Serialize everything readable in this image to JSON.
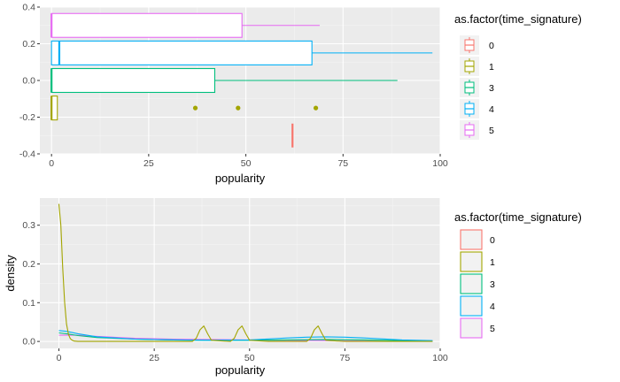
{
  "chart_data": [
    {
      "type": "boxplot",
      "xlabel": "popularity",
      "ylabel": "",
      "xlim": [
        -3,
        100
      ],
      "ylim": [
        -0.4,
        0.4
      ],
      "x_ticks": [
        0,
        25,
        50,
        75,
        100
      ],
      "y_ticks": [
        -0.4,
        -0.2,
        0.0,
        0.2,
        0.4
      ],
      "y_tick_labels": [
        "-0.4",
        "-0.2",
        "0.0",
        "0.2",
        "0.4"
      ],
      "grid": true,
      "legend": {
        "title": "as.factor(time_signature)",
        "placement": "right"
      },
      "series": [
        {
          "name": "0",
          "color": "#F8766D",
          "y_center": -0.3,
          "min": 62,
          "q1": 62,
          "median": 62,
          "q3": 62,
          "max": 62,
          "outliers": []
        },
        {
          "name": "1",
          "color": "#A3A500",
          "y_center": -0.15,
          "min": 0,
          "q1": 0,
          "median": 0,
          "q3": 1.5,
          "max": 1.5,
          "outliers": [
            37,
            48,
            68
          ]
        },
        {
          "name": "3",
          "color": "#00BF7D",
          "y_center": 0.0,
          "min": 0,
          "q1": 0,
          "median": 0,
          "q3": 42,
          "max": 89,
          "outliers": []
        },
        {
          "name": "4",
          "color": "#00B0F6",
          "y_center": 0.15,
          "min": 0,
          "q1": 0,
          "median": 2,
          "q3": 67,
          "max": 98,
          "outliers": []
        },
        {
          "name": "5",
          "color": "#E76BF3",
          "y_center": 0.3,
          "min": 0,
          "q1": 0,
          "median": 0,
          "q3": 49,
          "max": 69,
          "outliers": []
        }
      ]
    },
    {
      "type": "line",
      "xlabel": "popularity",
      "ylabel": "density",
      "xlim": [
        -5,
        100
      ],
      "ylim": [
        -0.018,
        0.37
      ],
      "x_ticks": [
        0,
        25,
        50,
        75,
        100
      ],
      "y_ticks": [
        0.0,
        0.1,
        0.2,
        0.3
      ],
      "y_tick_labels": [
        "0.0",
        "0.1",
        "0.2",
        "0.3"
      ],
      "grid": true,
      "legend": {
        "title": "as.factor(time_signature)",
        "placement": "right"
      },
      "series": [
        {
          "name": "0",
          "color": "#F8766D",
          "x": [],
          "y": []
        },
        {
          "name": "1",
          "color": "#A3A500",
          "x": [
            0,
            0.5,
            1,
            1.5,
            2,
            2.5,
            3,
            3.5,
            4,
            5,
            10,
            20,
            30,
            35,
            36,
            37,
            38,
            39,
            40,
            45,
            46,
            47,
            48,
            49,
            50,
            55,
            65,
            66,
            67,
            68,
            69,
            70,
            75,
            98
          ],
          "y": [
            0.355,
            0.3,
            0.19,
            0.1,
            0.045,
            0.018,
            0.007,
            0.003,
            0.001,
            0,
            0,
            0,
            0,
            0,
            0.008,
            0.03,
            0.04,
            0.02,
            0.003,
            0,
            0.008,
            0.03,
            0.04,
            0.02,
            0.003,
            0,
            0,
            0.008,
            0.03,
            0.04,
            0.02,
            0.003,
            0,
            0
          ]
        },
        {
          "name": "3",
          "color": "#00BF7D",
          "x": [
            0,
            2,
            5,
            10,
            20,
            30,
            40,
            50,
            60,
            70,
            80,
            90,
            98
          ],
          "y": [
            0.022,
            0.02,
            0.015,
            0.01,
            0.006,
            0.004,
            0.003,
            0.003,
            0.004,
            0.005,
            0.004,
            0.002,
            0.001
          ]
        },
        {
          "name": "4",
          "color": "#00B0F6",
          "x": [
            0,
            2,
            5,
            10,
            20,
            30,
            40,
            50,
            60,
            65,
            70,
            75,
            80,
            90,
            98
          ],
          "y": [
            0.028,
            0.026,
            0.02,
            0.012,
            0.006,
            0.004,
            0.003,
            0.004,
            0.009,
            0.011,
            0.012,
            0.011,
            0.009,
            0.004,
            0.002
          ]
        },
        {
          "name": "5",
          "color": "#E76BF3",
          "x": [
            0,
            5,
            10,
            20,
            30,
            40,
            50,
            60,
            70,
            80,
            90,
            98
          ],
          "y": [
            0.016,
            0.016,
            0.013,
            0.008,
            0.006,
            0.005,
            0.004,
            0.003,
            0.002,
            0.001,
            0.0005,
            0.0002
          ]
        }
      ]
    }
  ]
}
